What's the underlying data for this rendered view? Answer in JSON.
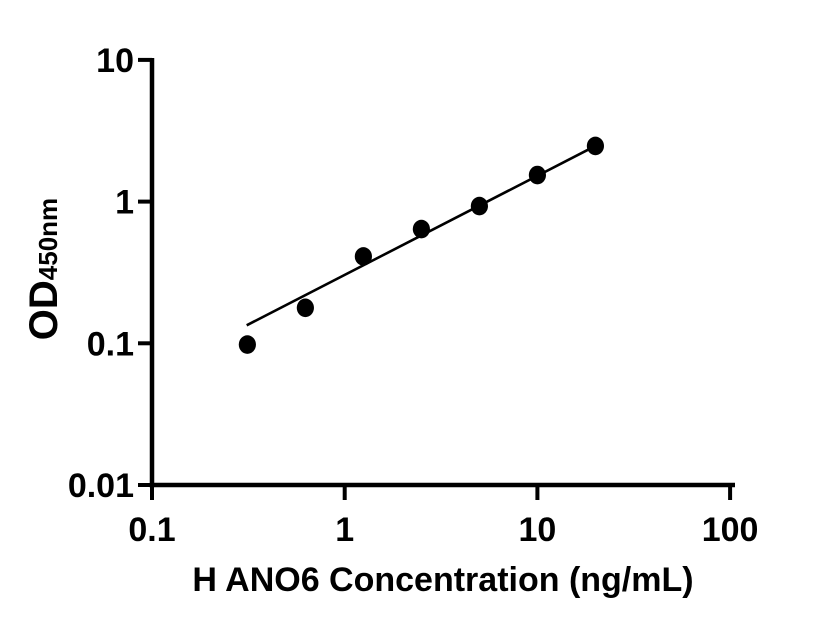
{
  "figure": {
    "background_color": "#ffffff",
    "foreground_color": "#000000"
  },
  "chart_data": {
    "type": "scatter",
    "title": "",
    "xlabel": "H ANO6 Concentration (ng/mL)",
    "ylabel": {
      "main": "OD",
      "subscript": "450nm"
    },
    "x_scale": "log10",
    "y_scale": "log10",
    "xlim": [
      0.1,
      100
    ],
    "ylim": [
      0.01,
      10
    ],
    "x_tick_values": [
      0.1,
      1,
      10,
      100
    ],
    "x_tick_labels": [
      "0.1",
      "1",
      "10",
      "100"
    ],
    "y_tick_values": [
      0.01,
      0.1,
      1,
      10
    ],
    "y_tick_labels": [
      "0.01",
      "0.1",
      "1",
      "10"
    ],
    "grid": false,
    "legend": null,
    "series": [
      {
        "name": "standard-curve-points",
        "marker": "filled-circle",
        "color": "#000000",
        "x": [
          0.3125,
          0.625,
          1.25,
          2.5,
          5,
          10,
          20
        ],
        "y": [
          0.098,
          0.178,
          0.41,
          0.64,
          0.93,
          1.54,
          2.47
        ]
      }
    ],
    "fit_line": {
      "name": "power-fit-line",
      "color": "#000000",
      "x_start": 0.31,
      "y_start": 0.134,
      "x_end": 20,
      "y_end": 2.47
    }
  }
}
